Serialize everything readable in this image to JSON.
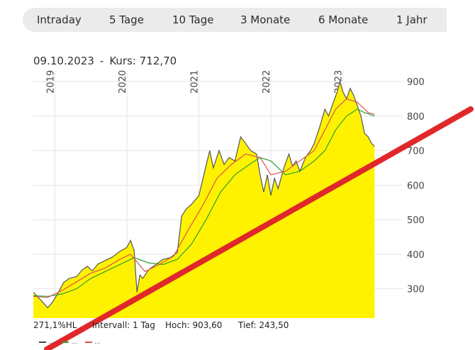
{
  "tabs": [
    {
      "label": "Intraday"
    },
    {
      "label": "5 Tage"
    },
    {
      "label": "10 Tage"
    },
    {
      "label": "3 Monate"
    },
    {
      "label": "6 Monate"
    },
    {
      "label": "1 Jahr"
    }
  ],
  "info": {
    "date": "09.10.2023",
    "separator": "-",
    "kurs_label": "Kurs:",
    "kurs_value": "712,70"
  },
  "stats": {
    "performance": "271,1%",
    "hl_label": "HL",
    "intervall": "Intervall: 1 Tag",
    "hoch_label": "Hoch:",
    "hoch_value": "903,60",
    "tief_label": "Tief:",
    "tief_value": "243,50"
  },
  "legend": [
    {
      "label": "...",
      "color": "#444444"
    },
    {
      "label": "...",
      "color": "#2ea02e"
    },
    {
      "label": "...",
      "color": "#d9534f"
    }
  ],
  "chart_data": {
    "type": "area",
    "x_start": 2018.7,
    "x_end": 2023.83,
    "ylim": [
      215,
      935
    ],
    "yticks": [
      300,
      400,
      500,
      600,
      700,
      800,
      900
    ],
    "year_labels": [
      "2019",
      "2020",
      "2021",
      "2022",
      "2023"
    ],
    "grid": true,
    "fill_color": "#fff200",
    "price_color": "#555555",
    "series": [
      {
        "points": [
          [
            2018.7,
            290
          ],
          [
            2018.8,
            268
          ],
          [
            2018.9,
            245
          ],
          [
            2018.97,
            262
          ],
          [
            2019.05,
            290
          ],
          [
            2019.12,
            318
          ],
          [
            2019.2,
            330
          ],
          [
            2019.3,
            335
          ],
          [
            2019.38,
            355
          ],
          [
            2019.45,
            365
          ],
          [
            2019.52,
            352
          ],
          [
            2019.6,
            372
          ],
          [
            2019.7,
            382
          ],
          [
            2019.8,
            392
          ],
          [
            2019.9,
            408
          ],
          [
            2020.0,
            420
          ],
          [
            2020.05,
            440
          ],
          [
            2020.1,
            410
          ],
          [
            2020.14,
            290
          ],
          [
            2020.18,
            340
          ],
          [
            2020.22,
            330
          ],
          [
            2020.3,
            355
          ],
          [
            2020.4,
            370
          ],
          [
            2020.5,
            385
          ],
          [
            2020.6,
            390
          ],
          [
            2020.7,
            405
          ],
          [
            2020.76,
            510
          ],
          [
            2020.82,
            530
          ],
          [
            2020.9,
            545
          ],
          [
            2021.0,
            570
          ],
          [
            2021.08,
            640
          ],
          [
            2021.15,
            700
          ],
          [
            2021.2,
            650
          ],
          [
            2021.28,
            700
          ],
          [
            2021.35,
            660
          ],
          [
            2021.42,
            680
          ],
          [
            2021.5,
            670
          ],
          [
            2021.58,
            740
          ],
          [
            2021.65,
            720
          ],
          [
            2021.72,
            700
          ],
          [
            2021.8,
            690
          ],
          [
            2021.85,
            630
          ],
          [
            2021.9,
            580
          ],
          [
            2021.95,
            630
          ],
          [
            2022.0,
            570
          ],
          [
            2022.05,
            620
          ],
          [
            2022.1,
            590
          ],
          [
            2022.18,
            650
          ],
          [
            2022.25,
            690
          ],
          [
            2022.3,
            655
          ],
          [
            2022.35,
            670
          ],
          [
            2022.4,
            640
          ],
          [
            2022.48,
            680
          ],
          [
            2022.55,
            700
          ],
          [
            2022.6,
            720
          ],
          [
            2022.68,
            770
          ],
          [
            2022.75,
            820
          ],
          [
            2022.8,
            800
          ],
          [
            2022.85,
            830
          ],
          [
            2022.92,
            870
          ],
          [
            2022.96,
            900
          ],
          [
            2023.0,
            870
          ],
          [
            2023.05,
            850
          ],
          [
            2023.1,
            880
          ],
          [
            2023.15,
            860
          ],
          [
            2023.2,
            830
          ],
          [
            2023.25,
            800
          ],
          [
            2023.3,
            750
          ],
          [
            2023.35,
            740
          ],
          [
            2023.4,
            720
          ],
          [
            2023.44,
            712.7
          ]
        ]
      },
      {
        "points": [
          [
            2018.7,
            280
          ],
          [
            2018.9,
            278
          ],
          [
            2019.1,
            285
          ],
          [
            2019.3,
            300
          ],
          [
            2019.5,
            330
          ],
          [
            2019.7,
            350
          ],
          [
            2019.9,
            370
          ],
          [
            2020.1,
            390
          ],
          [
            2020.3,
            375
          ],
          [
            2020.5,
            370
          ],
          [
            2020.7,
            385
          ],
          [
            2020.9,
            430
          ],
          [
            2021.1,
            500
          ],
          [
            2021.3,
            580
          ],
          [
            2021.5,
            630
          ],
          [
            2021.7,
            660
          ],
          [
            2021.85,
            680
          ],
          [
            2022.0,
            670
          ],
          [
            2022.2,
            630
          ],
          [
            2022.4,
            640
          ],
          [
            2022.6,
            670
          ],
          [
            2022.75,
            700
          ],
          [
            2022.9,
            760
          ],
          [
            2023.05,
            800
          ],
          [
            2023.2,
            820
          ],
          [
            2023.3,
            810
          ],
          [
            2023.44,
            800
          ]
        ]
      },
      {
        "points": [
          [
            2018.7,
            278
          ],
          [
            2018.9,
            275
          ],
          [
            2019.1,
            295
          ],
          [
            2019.3,
            320
          ],
          [
            2019.5,
            345
          ],
          [
            2019.7,
            360
          ],
          [
            2019.9,
            385
          ],
          [
            2020.05,
            400
          ],
          [
            2020.25,
            350
          ],
          [
            2020.45,
            370
          ],
          [
            2020.65,
            395
          ],
          [
            2020.85,
            470
          ],
          [
            2021.05,
            540
          ],
          [
            2021.25,
            620
          ],
          [
            2021.45,
            660
          ],
          [
            2021.65,
            690
          ],
          [
            2021.85,
            680
          ],
          [
            2022.0,
            630
          ],
          [
            2022.2,
            640
          ],
          [
            2022.4,
            670
          ],
          [
            2022.6,
            700
          ],
          [
            2022.75,
            760
          ],
          [
            2022.9,
            820
          ],
          [
            2023.05,
            850
          ],
          [
            2023.2,
            840
          ],
          [
            2023.35,
            810
          ],
          [
            2023.44,
            805
          ]
        ]
      }
    ]
  }
}
